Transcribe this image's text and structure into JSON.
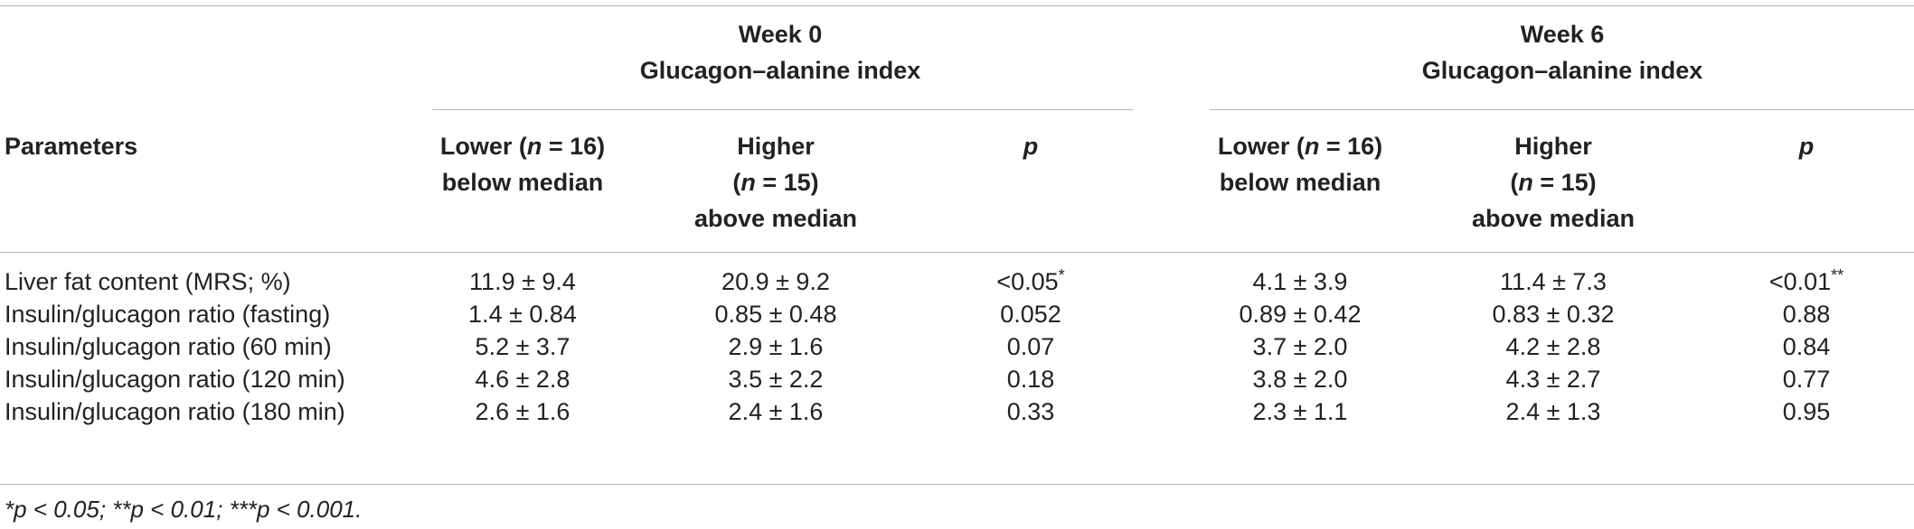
{
  "table": {
    "groups": [
      {
        "title": "Week 0",
        "subtitle": "Glucagon–alanine index"
      },
      {
        "title": "Week 6",
        "subtitle": "Glucagon–alanine index"
      }
    ],
    "param_header": "Parameters",
    "lower": {
      "pre": "Lower (",
      "n_sym": "n",
      "post": " = 16)",
      "line2": "below median"
    },
    "higher": {
      "line1": "Higher",
      "pre": "(",
      "n_sym": "n",
      "post": " = 15)",
      "line3": "above median"
    },
    "p_header": "p",
    "rows": [
      {
        "label": "Liver fat content (MRS; %)",
        "w0_lower": "11.9 ± 9.4",
        "w0_higher": "20.9 ± 9.2",
        "w0_p": "<0.05",
        "w0_p_sup": "*",
        "w6_lower": "4.1 ± 3.9",
        "w6_higher": "11.4 ± 7.3",
        "w6_p": "<0.01",
        "w6_p_sup": "**"
      },
      {
        "label": "Insulin/glucagon ratio (fasting)",
        "w0_lower": "1.4 ± 0.84",
        "w0_higher": "0.85 ± 0.48",
        "w0_p": "0.052",
        "w0_p_sup": "",
        "w6_lower": "0.89 ± 0.42",
        "w6_higher": "0.83 ± 0.32",
        "w6_p": "0.88",
        "w6_p_sup": ""
      },
      {
        "label": "Insulin/glucagon ratio (60 min)",
        "w0_lower": "5.2 ± 3.7",
        "w0_higher": "2.9 ± 1.6",
        "w0_p": "0.07",
        "w0_p_sup": "",
        "w6_lower": "3.7 ± 2.0",
        "w6_higher": "4.2 ± 2.8",
        "w6_p": "0.84",
        "w6_p_sup": ""
      },
      {
        "label": "Insulin/glucagon ratio (120 min)",
        "w0_lower": "4.6 ± 2.8",
        "w0_higher": "3.5 ± 2.2",
        "w0_p": "0.18",
        "w0_p_sup": "",
        "w6_lower": "3.8 ± 2.0",
        "w6_higher": "4.3 ± 2.7",
        "w6_p": "0.77",
        "w6_p_sup": ""
      },
      {
        "label": "Insulin/glucagon ratio (180 min)",
        "w0_lower": "2.6 ± 1.6",
        "w0_higher": "2.4 ± 1.6",
        "w0_p": "0.33",
        "w0_p_sup": "",
        "w6_lower": "2.3 ± 1.1",
        "w6_higher": "2.4 ± 1.3",
        "w6_p": "0.95",
        "w6_p_sup": ""
      }
    ],
    "footnote": "*p < 0.05; **p < 0.01; ***p < 0.001."
  }
}
